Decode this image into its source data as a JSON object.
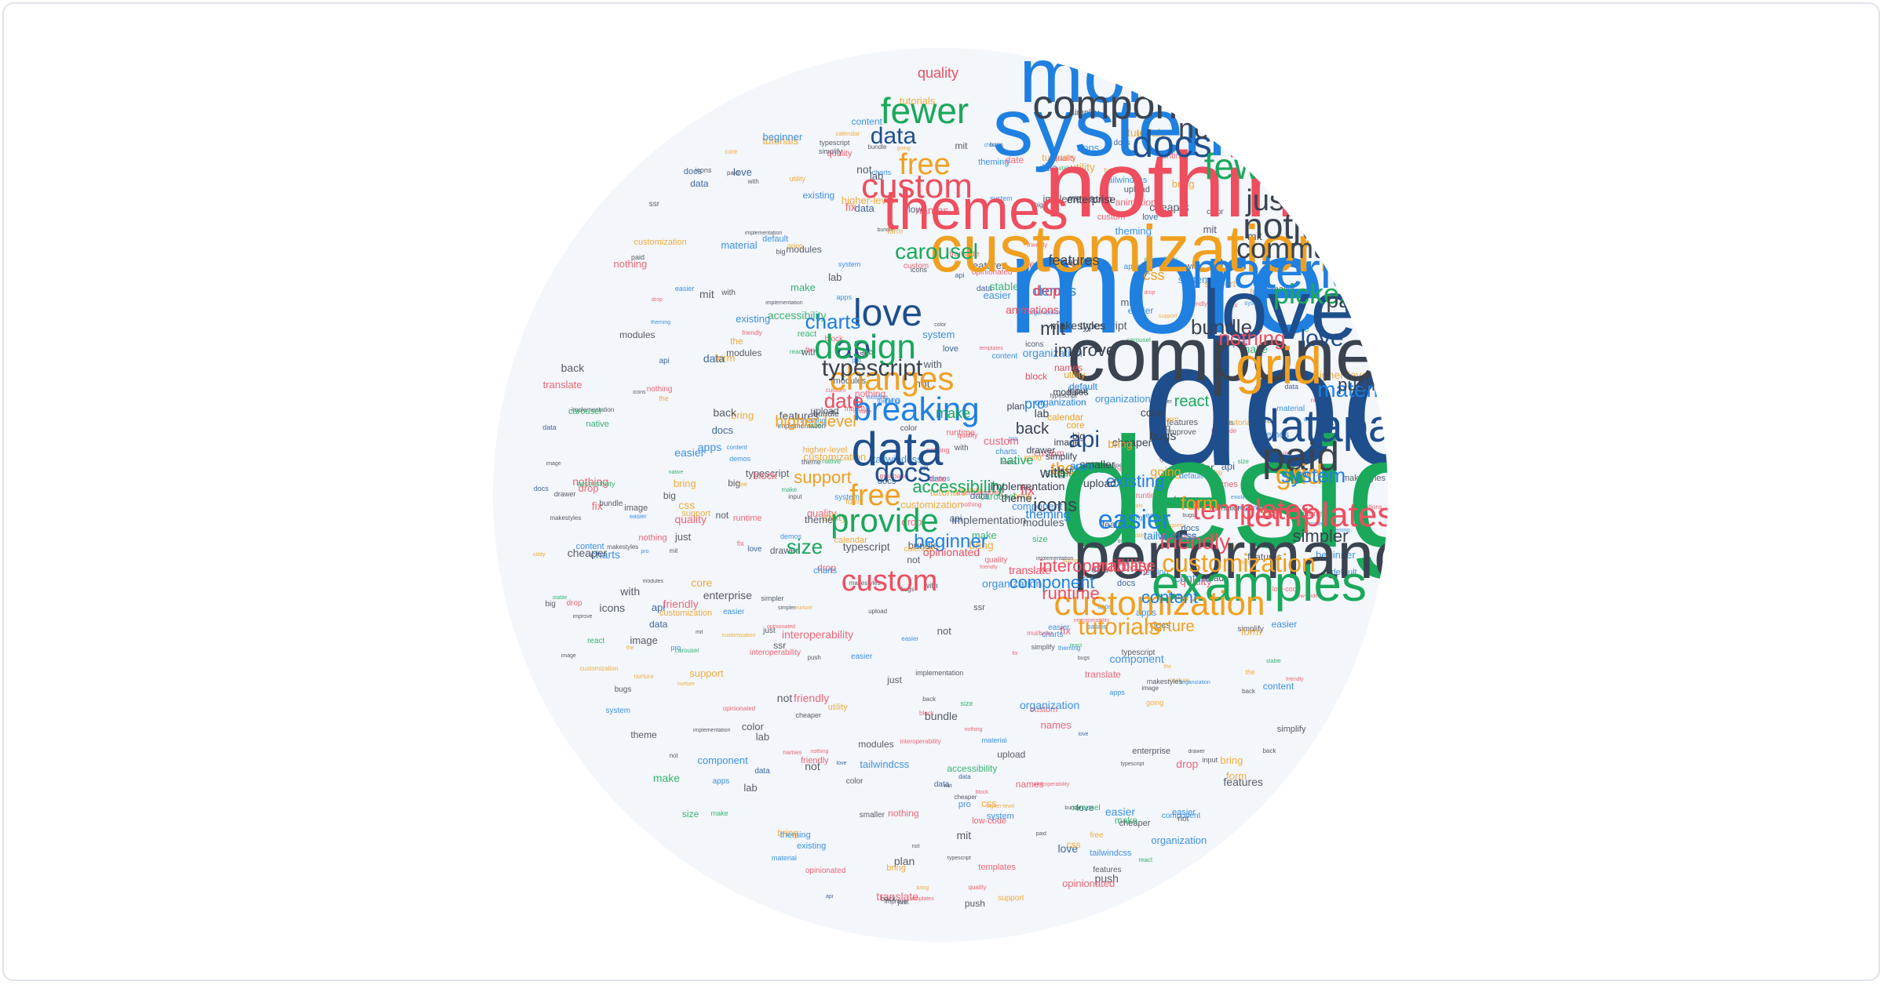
{
  "palette": {
    "blue": "#1f80e0",
    "navy": "#1f4e8c",
    "green": "#1aa85a",
    "orange": "#f0a020",
    "red": "#ee4e5e",
    "dark": "#3a4350"
  },
  "words": [
    {
      "text": "docs",
      "color": "navy"
    },
    {
      "text": "design",
      "color": "green"
    },
    {
      "text": "more",
      "color": "blue"
    },
    {
      "text": "components",
      "color": "dark"
    },
    {
      "text": "system",
      "color": "blue"
    },
    {
      "text": "nothing",
      "color": "red"
    },
    {
      "text": "more",
      "color": "blue"
    },
    {
      "text": "customization",
      "color": "orange"
    },
    {
      "text": "love",
      "color": "navy"
    },
    {
      "text": "performance",
      "color": "dark"
    },
    {
      "text": "examples",
      "color": "green"
    },
    {
      "text": "material",
      "color": "blue"
    },
    {
      "text": "grid",
      "color": "orange"
    },
    {
      "text": "datapaid",
      "color": "navy"
    },
    {
      "text": "themes",
      "color": "red"
    },
    {
      "text": "components",
      "color": "dark"
    },
    {
      "text": "customization",
      "color": "orange"
    },
    {
      "text": "data",
      "color": "navy"
    },
    {
      "text": "paid",
      "color": "dark"
    },
    {
      "text": "notjust",
      "color": "dark"
    },
    {
      "text": "templates",
      "color": "red"
    },
    {
      "text": "custom",
      "color": "red"
    },
    {
      "text": "breaking",
      "color": "blue"
    },
    {
      "text": "changes",
      "color": "orange"
    },
    {
      "text": "docs",
      "color": "navy"
    },
    {
      "text": "fewer",
      "color": "green"
    },
    {
      "text": "fewer",
      "color": "green"
    },
    {
      "text": "easier",
      "color": "blue"
    },
    {
      "text": "provide",
      "color": "green"
    },
    {
      "text": "api",
      "color": "navy"
    },
    {
      "text": "love",
      "color": "navy"
    },
    {
      "text": "api",
      "color": "navy"
    },
    {
      "text": "design",
      "color": "green"
    },
    {
      "text": "community",
      "color": "dark"
    },
    {
      "text": "grid",
      "color": "orange"
    },
    {
      "text": "picker",
      "color": "green"
    },
    {
      "text": "just",
      "color": "dark"
    },
    {
      "text": "api",
      "color": "navy"
    },
    {
      "text": "custom",
      "color": "red"
    },
    {
      "text": "tutorials",
      "color": "orange"
    },
    {
      "text": "free",
      "color": "orange"
    },
    {
      "text": "not",
      "color": "dark"
    },
    {
      "text": "free",
      "color": "orange"
    },
    {
      "text": "friendly",
      "color": "red"
    },
    {
      "text": "data",
      "color": "navy"
    },
    {
      "text": "typescript",
      "color": "dark"
    },
    {
      "text": "easier",
      "color": "blue"
    },
    {
      "text": "nothing",
      "color": "red"
    },
    {
      "text": "system",
      "color": "blue"
    },
    {
      "text": "docs",
      "color": "navy"
    },
    {
      "text": "templates",
      "color": "red"
    },
    {
      "text": "customization",
      "color": "orange"
    },
    {
      "text": "tutorials",
      "color": "orange"
    },
    {
      "text": "material",
      "color": "blue"
    },
    {
      "text": "date",
      "color": "red"
    },
    {
      "text": "paid",
      "color": "dark"
    },
    {
      "text": "love",
      "color": "navy"
    },
    {
      "text": "push",
      "color": "dark"
    },
    {
      "text": "carousel",
      "color": "green"
    },
    {
      "text": "bundle",
      "color": "dark"
    },
    {
      "text": "charts",
      "color": "blue"
    },
    {
      "text": "form",
      "color": "orange"
    },
    {
      "text": "accessibility",
      "color": "green"
    },
    {
      "text": "beginner",
      "color": "blue"
    },
    {
      "text": "interoperability",
      "color": "red"
    },
    {
      "text": "mui/base",
      "color": "red"
    },
    {
      "text": "icons",
      "color": "dark"
    },
    {
      "text": "content",
      "color": "blue"
    },
    {
      "text": "support",
      "color": "orange"
    },
    {
      "text": "size",
      "color": "green"
    },
    {
      "text": "mit",
      "color": "dark"
    },
    {
      "text": "simpler",
      "color": "dark"
    },
    {
      "text": "runtime",
      "color": "red"
    },
    {
      "text": "nurture",
      "color": "orange"
    },
    {
      "text": "component",
      "color": "blue"
    },
    {
      "text": "improve",
      "color": "dark"
    },
    {
      "text": "react",
      "color": "green"
    },
    {
      "text": "existing",
      "color": "blue"
    },
    {
      "text": "quality",
      "color": "red"
    },
    {
      "text": "demos",
      "color": "blue"
    },
    {
      "text": "theming",
      "color": "blue"
    },
    {
      "text": "css",
      "color": "orange"
    },
    {
      "text": "makestyles",
      "color": "dark"
    },
    {
      "text": "tailwindcss",
      "color": "blue"
    },
    {
      "text": "enterprise",
      "color": "dark"
    },
    {
      "text": "smaller",
      "color": "dark"
    },
    {
      "text": "lab",
      "color": "dark"
    },
    {
      "text": "cheaper",
      "color": "dark"
    },
    {
      "text": "drop",
      "color": "red"
    },
    {
      "text": "opinionated",
      "color": "red"
    },
    {
      "text": "higher-level",
      "color": "orange"
    },
    {
      "text": "going",
      "color": "orange"
    },
    {
      "text": "animations",
      "color": "red"
    },
    {
      "text": "translate",
      "color": "red"
    },
    {
      "text": "native",
      "color": "green"
    },
    {
      "text": "stable",
      "color": "green"
    },
    {
      "text": "pro",
      "color": "blue"
    },
    {
      "text": "upload",
      "color": "dark"
    },
    {
      "text": "bugs",
      "color": "dark"
    },
    {
      "text": "features",
      "color": "dark"
    },
    {
      "text": "color",
      "color": "dark"
    },
    {
      "text": "theme",
      "color": "dark"
    },
    {
      "text": "back",
      "color": "dark"
    },
    {
      "text": "make",
      "color": "green"
    },
    {
      "text": "the",
      "color": "orange"
    },
    {
      "text": "with",
      "color": "dark"
    },
    {
      "text": "fix",
      "color": "red"
    },
    {
      "text": "apps",
      "color": "blue"
    },
    {
      "text": "bring",
      "color": "orange"
    },
    {
      "text": "core",
      "color": "orange"
    },
    {
      "text": "ssr",
      "color": "dark"
    },
    {
      "text": "implementation",
      "color": "dark"
    },
    {
      "text": "drawer",
      "color": "dark"
    },
    {
      "text": "plan",
      "color": "dark"
    },
    {
      "text": "simplify",
      "color": "dark"
    },
    {
      "text": "big",
      "color": "dark"
    },
    {
      "text": "input",
      "color": "dark"
    },
    {
      "text": "modules",
      "color": "dark"
    },
    {
      "text": "utility",
      "color": "orange"
    },
    {
      "text": "default",
      "color": "blue"
    },
    {
      "text": "organization",
      "color": "blue"
    },
    {
      "text": "names",
      "color": "red"
    },
    {
      "text": "image",
      "color": "dark"
    },
    {
      "text": "calendar",
      "color": "orange"
    },
    {
      "text": "block",
      "color": "red"
    },
    {
      "text": "low-code",
      "color": "red"
    }
  ]
}
